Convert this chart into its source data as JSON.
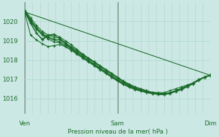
{
  "background_color": "#cce8e4",
  "plot_bg_color": "#cce8e4",
  "line_color": "#1a6b2a",
  "grid_color_h": "#a8d5ce",
  "grid_color_v": "#b8cfc9",
  "xlabel_text": "Pression niveau de la mer( hPa )",
  "xtick_labels": [
    "Ven",
    "Sam",
    "Dim"
  ],
  "ytick_values": [
    1016,
    1017,
    1018,
    1019,
    1020
  ],
  "ylim": [
    1015.2,
    1021.0
  ],
  "xlim": [
    0,
    96
  ],
  "ven_x": 0,
  "sam_x": 48,
  "dim_x": 96,
  "series": [
    [
      1020.6,
      1020.2,
      1019.8,
      1019.5,
      1019.3,
      1019.2,
      1019.15,
      1018.9,
      1018.7,
      1018.5,
      1018.3,
      1018.1,
      1017.9,
      1017.7,
      1017.5,
      1017.3,
      1017.1,
      1016.9,
      1016.7,
      1016.6,
      1016.5,
      1016.4,
      1016.3,
      1016.3,
      1016.3,
      1016.4,
      1016.5,
      1016.6,
      1016.7,
      1016.8,
      1017.0,
      1017.1,
      1017.2
    ],
    [
      1020.5,
      1020.0,
      1019.6,
      1019.3,
      1019.1,
      1018.95,
      1018.9,
      1018.7,
      1018.5,
      1018.3,
      1018.1,
      1017.9,
      1017.7,
      1017.5,
      1017.3,
      1017.1,
      1016.9,
      1016.75,
      1016.6,
      1016.5,
      1016.4,
      1016.3,
      1016.25,
      1016.2,
      1016.2,
      1016.25,
      1016.35,
      1016.45,
      1016.6,
      1016.75,
      1016.95,
      1017.1,
      1017.2
    ],
    [
      1020.6,
      1020.1,
      1019.7,
      1019.4,
      1019.2,
      1019.1,
      1019.05,
      1018.85,
      1018.65,
      1018.45,
      1018.25,
      1018.05,
      1017.85,
      1017.65,
      1017.45,
      1017.25,
      1017.05,
      1016.85,
      1016.7,
      1016.55,
      1016.45,
      1016.35,
      1016.28,
      1016.25,
      1016.23,
      1016.3,
      1016.4,
      1016.5,
      1016.65,
      1016.78,
      1016.95,
      1017.1,
      1017.2
    ],
    [
      1020.55,
      1020.05,
      1019.65,
      1019.35,
      1019.15,
      1019.05,
      1018.95,
      1018.78,
      1018.6,
      1018.4,
      1018.2,
      1017.98,
      1017.78,
      1017.58,
      1017.38,
      1017.18,
      1016.98,
      1016.8,
      1016.65,
      1016.52,
      1016.42,
      1016.32,
      1016.26,
      1016.22,
      1016.2,
      1016.27,
      1016.37,
      1016.47,
      1016.62,
      1016.77,
      1016.95,
      1017.1,
      1017.2
    ],
    [
      1020.5,
      1019.95,
      1019.4,
      1019.1,
      1019.3,
      1019.35,
      1019.2,
      1019.0,
      1018.8,
      1018.55,
      1018.3,
      1018.1,
      1017.9,
      1017.7,
      1017.5,
      1017.3,
      1017.1,
      1016.9,
      1016.75,
      1016.6,
      1016.5,
      1016.4,
      1016.32,
      1016.28,
      1016.25,
      1016.3,
      1016.4,
      1016.52,
      1016.65,
      1016.8,
      1016.97,
      1017.12,
      1017.22
    ],
    [
      1020.5,
      1019.9,
      1019.4,
      1019.05,
      1019.25,
      1019.3,
      1019.1,
      1018.85,
      1018.6,
      1018.35,
      1018.1,
      1017.9,
      1017.7,
      1017.5,
      1017.3,
      1017.1,
      1016.9,
      1016.72,
      1016.58,
      1016.45,
      1016.38,
      1016.3,
      1016.25,
      1016.22,
      1016.2,
      1016.27,
      1016.38,
      1016.5,
      1016.63,
      1016.78,
      1016.95,
      1017.1,
      1017.2
    ],
    [
      1020.45,
      1019.3,
      1019.05,
      1018.85,
      1018.7,
      1018.75,
      1018.8,
      1018.7,
      1018.55,
      1018.35,
      1018.15,
      1017.95,
      1017.75,
      1017.55,
      1017.35,
      1017.15,
      1016.95,
      1016.78,
      1016.63,
      1016.5,
      1016.42,
      1016.34,
      1016.28,
      1016.25,
      1016.23,
      1016.28,
      1016.4,
      1016.52,
      1016.65,
      1016.8,
      1016.97,
      1017.12,
      1017.22
    ]
  ],
  "straight_line": [
    [
      0,
      1020.5
    ],
    [
      96,
      1017.2
    ]
  ]
}
